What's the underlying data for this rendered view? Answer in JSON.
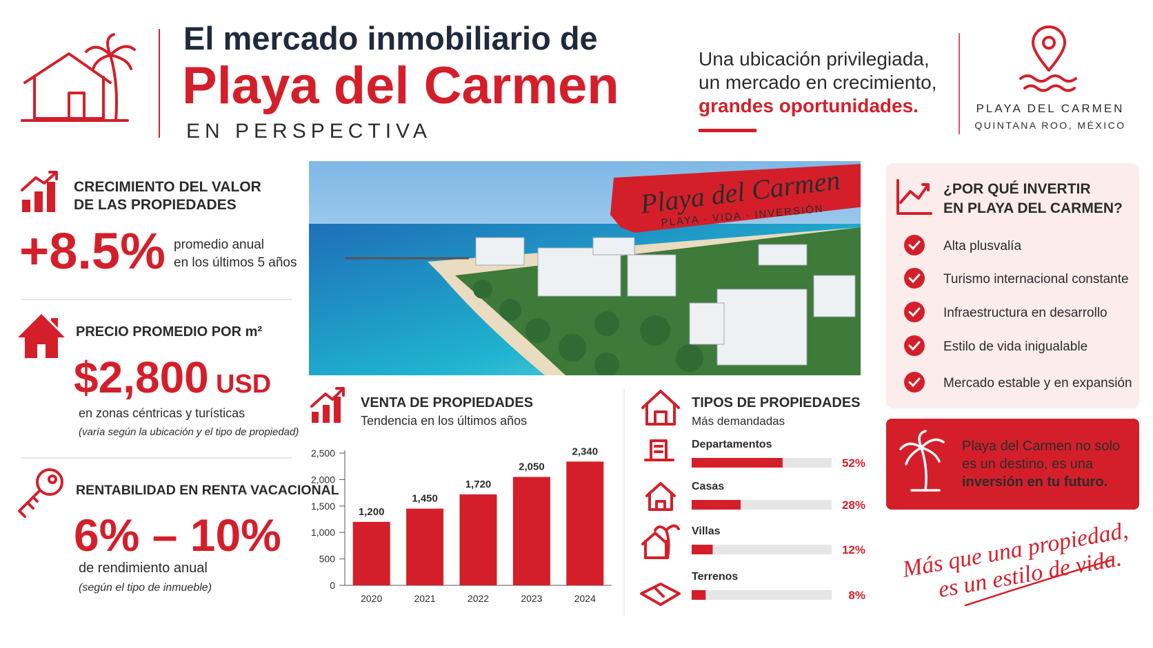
{
  "header": {
    "title_line1": "El mercado inmobiliario de",
    "title_line2": "Playa del Carmen",
    "subtitle": "EN PERSPECTIVA",
    "tagline": [
      "Una ubicación privilegiada,",
      "un mercado en crecimiento,",
      "grandes oportunidades."
    ],
    "location_name": "PLAYA DEL CARMEN",
    "location_region": "QUINTANA ROO, MÉXICO"
  },
  "stats": [
    {
      "title": [
        "CRECIMIENTO DEL VALOR",
        "DE LAS PROPIEDADES"
      ],
      "value": "+8.5%",
      "caption": [
        "promedio anual",
        "en los últimos 5 años"
      ]
    },
    {
      "title": [
        "PRECIO PROMEDIO POR m²"
      ],
      "value": "$2,800",
      "unit": "USD",
      "caption": [
        "en zonas céntricas y turísticas"
      ],
      "note": "(varía según la ubicación y el tipo de propiedad)"
    },
    {
      "title": [
        "RENTABILIDAD EN RENTA VACACIONAL"
      ],
      "value": "6% – 10%",
      "caption": [
        "de rendimiento anual"
      ],
      "note": "(según el tipo de inmueble)"
    }
  ],
  "hero_image": {
    "badge_title": "Playa del Carmen",
    "badge_subtitle": "PLAYA · VIDA · INVERSIÓN"
  },
  "chart_data": [
    {
      "type": "bar",
      "title": "VENTA DE PROPIEDADES",
      "subtitle": "Tendencia en los últimos años",
      "categories": [
        "2020",
        "2021",
        "2022",
        "2023",
        "2024"
      ],
      "values": [
        1200,
        1450,
        1720,
        2050,
        2340
      ],
      "value_labels": [
        "1,200",
        "1,450",
        "1,720",
        "2,050",
        "2,340"
      ],
      "color": "#d41f2a",
      "ylim": [
        0,
        2500
      ],
      "yticks": [
        0,
        500,
        {
          "value": 1000,
          "label": "1,000"
        },
        {
          "value": 1500,
          "label": "1,500"
        },
        {
          "value": 2000,
          "label": "2,000"
        },
        {
          "value": 2500,
          "label": "2,500"
        }
      ]
    },
    {
      "type": "hbar",
      "title": "TIPOS DE PROPIEDADES",
      "subtitle": "Más demandadas",
      "categories": [
        "Departamentos",
        "Casas",
        "Villas",
        "Terrenos"
      ],
      "values": [
        52,
        28,
        12,
        8
      ],
      "value_labels": [
        "52%",
        "28%",
        "12%",
        "8%"
      ],
      "color": "#d41f2a",
      "xlim": [
        0,
        80
      ]
    }
  ],
  "why_invest": {
    "title": [
      "¿POR QUÉ INVERTIR",
      "EN PLAYA DEL CARMEN?"
    ],
    "items": [
      "Alta plusvalía",
      "Turismo internacional constante",
      "Infraestructura en desarrollo",
      "Estilo de vida inigualable",
      "Mercado estable y en expansión"
    ]
  },
  "callout": [
    "Playa del Carmen no solo",
    "es un destino, es una",
    "inversión en tu futuro."
  ],
  "closing": [
    "Más que una propiedad,",
    "es un estilo de vida."
  ]
}
